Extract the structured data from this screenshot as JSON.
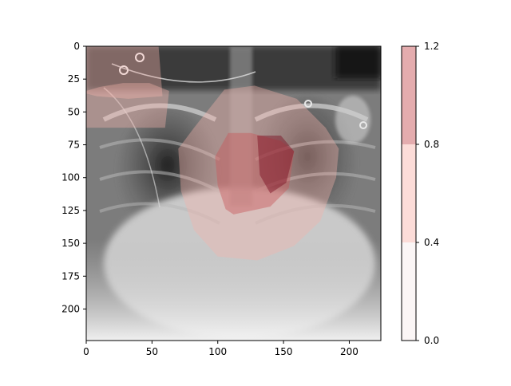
{
  "chart_data": {
    "type": "heatmap",
    "title": "",
    "xlabel": "",
    "ylabel": "",
    "xlim": [
      0,
      224
    ],
    "ylim": [
      224,
      0
    ],
    "x_ticks": [
      "0",
      "50",
      "100",
      "150",
      "200"
    ],
    "y_ticks": [
      "0",
      "25",
      "50",
      "75",
      "100",
      "125",
      "150",
      "175",
      "200"
    ],
    "background": "chest X-ray radiograph (grayscale)",
    "overlay_regions": [
      {
        "level": 0.6,
        "polygon": [
          [
            0,
            34
          ],
          [
            10,
            31
          ],
          [
            28,
            28
          ],
          [
            48,
            28
          ],
          [
            63,
            34
          ],
          [
            60,
            62
          ],
          [
            0,
            62
          ]
        ]
      },
      {
        "level": 0.6,
        "polygon": [
          [
            0,
            0
          ],
          [
            55,
            0
          ],
          [
            58,
            38
          ],
          [
            32,
            40
          ],
          [
            8,
            38
          ],
          [
            0,
            36
          ]
        ]
      },
      {
        "level": 0.6,
        "polygon": [
          [
            70,
            78
          ],
          [
            82,
            62
          ],
          [
            105,
            33
          ],
          [
            128,
            30
          ],
          [
            160,
            40
          ],
          [
            182,
            62
          ],
          [
            192,
            78
          ],
          [
            190,
            100
          ],
          [
            178,
            133
          ],
          [
            158,
            152
          ],
          [
            130,
            163
          ],
          [
            100,
            160
          ],
          [
            82,
            140
          ],
          [
            72,
            110
          ]
        ]
      },
      {
        "level": 1.0,
        "polygon": [
          [
            98,
            84
          ],
          [
            108,
            66
          ],
          [
            125,
            66
          ],
          [
            148,
            72
          ],
          [
            158,
            80
          ],
          [
            154,
            108
          ],
          [
            140,
            122
          ],
          [
            112,
            128
          ],
          [
            106,
            124
          ],
          [
            100,
            106
          ]
        ]
      },
      {
        "level": 1.2,
        "polygon": [
          [
            130,
            68
          ],
          [
            148,
            68
          ],
          [
            158,
            80
          ],
          [
            152,
            104
          ],
          [
            140,
            112
          ],
          [
            132,
            98
          ]
        ]
      }
    ],
    "colorbar": {
      "ticks": [
        "0.0",
        "0.4",
        "0.8",
        "1.2"
      ],
      "levels": [
        0.0,
        0.4,
        0.8,
        1.2
      ],
      "band_colors": [
        "#fbf6f6",
        "#fcdcd8",
        "#e4acae"
      ]
    },
    "colors": {
      "overlay_low": "#f4b4aa",
      "overlay_mid": "#c8585c",
      "overlay_high": "#7a0a1e"
    }
  }
}
